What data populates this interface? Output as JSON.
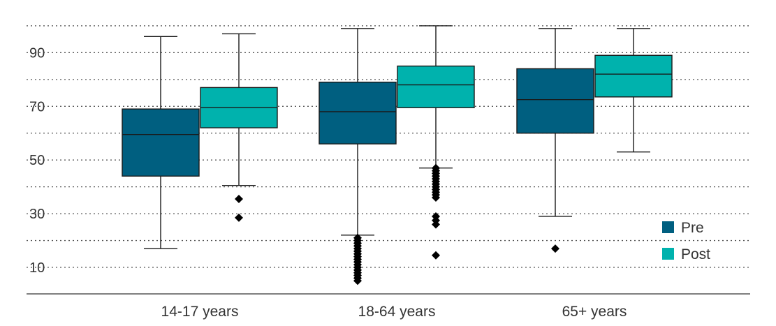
{
  "chart_data": {
    "type": "box",
    "title": "",
    "xlabel": "",
    "ylabel": "",
    "categories": [
      "14-17 years",
      "18-64 years",
      "65+ years"
    ],
    "ylim": [
      3,
      100
    ],
    "yticks": [
      10,
      30,
      50,
      70,
      90
    ],
    "grid": "horizontal dotted, every 10 units",
    "legend": {
      "position": "bottom-right"
    },
    "series": [
      {
        "name": "Pre",
        "color": "#005F80",
        "boxes": [
          {
            "whisker_low": 17,
            "q1": 44,
            "median": 59.5,
            "q3": 69,
            "whisker_high": 96,
            "outliers": []
          },
          {
            "whisker_low": 22,
            "q1": 56,
            "median": 68,
            "q3": 79,
            "whisker_high": 99,
            "outliers": [
              5,
              6,
              7,
              8,
              9,
              10,
              11,
              12,
              13,
              14,
              15,
              16,
              17,
              18,
              19,
              20,
              21
            ]
          },
          {
            "whisker_low": 29,
            "q1": 60,
            "median": 72.5,
            "q3": 84,
            "whisker_high": 99,
            "outliers": [
              17
            ]
          }
        ]
      },
      {
        "name": "Post",
        "color": "#00B2AD",
        "boxes": [
          {
            "whisker_low": 40.5,
            "q1": 62,
            "median": 69.5,
            "q3": 77,
            "whisker_high": 97,
            "outliers": [
              28.5,
              35.5
            ]
          },
          {
            "whisker_low": 47,
            "q1": 69.5,
            "median": 78,
            "q3": 85,
            "whisker_high": 100,
            "outliers": [
              14.5,
              26,
              27.5,
              29,
              36,
              37,
              38,
              39,
              40,
              41,
              42,
              43,
              44,
              45,
              46,
              47
            ]
          },
          {
            "whisker_low": 53,
            "q1": 73.5,
            "median": 82,
            "q3": 89,
            "whisker_high": 99,
            "outliers": []
          }
        ]
      }
    ]
  }
}
